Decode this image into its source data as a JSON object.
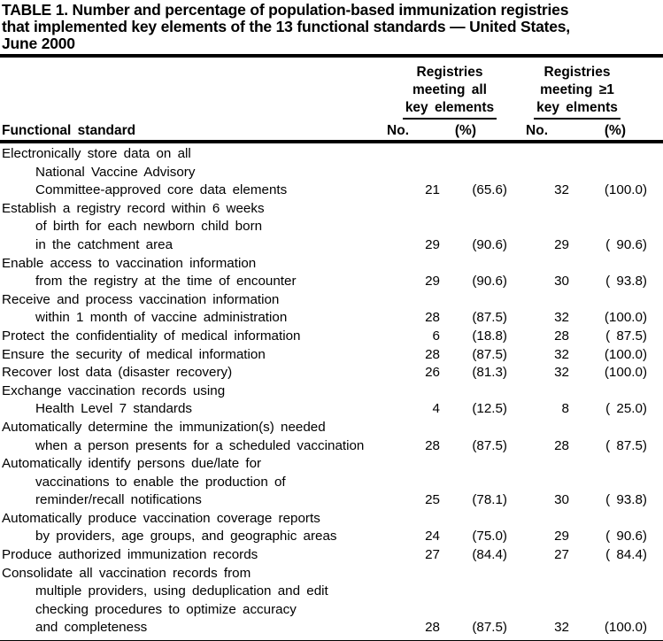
{
  "title_lines": [
    "TABLE 1. Number and percentage of population-based immunization registries",
    "that implemented key elements of the 13 functional standards — United States,",
    "June 2000"
  ],
  "table": {
    "group1": {
      "line1": "Registries",
      "line2": "meeting all",
      "line3": "key elements"
    },
    "group2": {
      "line1": "Registries",
      "line2": "meeting ≥1",
      "line3": "key elments"
    },
    "row_header": "Functional standard",
    "sub_headers": {
      "no1": "No.",
      "pct1": "(%)",
      "no2": "No.",
      "pct2": "(%)"
    },
    "rows": [
      {
        "lines": [
          "Electronically store data on all",
          "National Vaccine Advisory",
          "Committee-approved core data elements"
        ],
        "no1": "21",
        "pct1": "(65.6)",
        "no2": "32",
        "pct2": "(100.0)"
      },
      {
        "lines": [
          "Establish a registry record within 6 weeks",
          "of birth for each newborn child born",
          "in the catchment area"
        ],
        "no1": "29",
        "pct1": "(90.6)",
        "no2": "29",
        "pct2": "( 90.6)"
      },
      {
        "lines": [
          "Enable access to vaccination information",
          "from the registry at the time of encounter"
        ],
        "no1": "29",
        "pct1": "(90.6)",
        "no2": "30",
        "pct2": "( 93.8)"
      },
      {
        "lines": [
          "Receive and process vaccination information",
          "within 1 month of vaccine administration"
        ],
        "no1": "28",
        "pct1": "(87.5)",
        "no2": "32",
        "pct2": "(100.0)"
      },
      {
        "lines": [
          "Protect the confidentiality of medical information"
        ],
        "no1": "6",
        "pct1": "(18.8)",
        "no2": "28",
        "pct2": "( 87.5)"
      },
      {
        "lines": [
          "Ensure the security of medical information"
        ],
        "no1": "28",
        "pct1": "(87.5)",
        "no2": "32",
        "pct2": "(100.0)"
      },
      {
        "lines": [
          "Recover lost data (disaster recovery)"
        ],
        "no1": "26",
        "pct1": "(81.3)",
        "no2": "32",
        "pct2": "(100.0)"
      },
      {
        "lines": [
          "Exchange vaccination records using",
          "Health Level 7 standards"
        ],
        "no1": "4",
        "pct1": "(12.5)",
        "no2": "8",
        "pct2": "( 25.0)"
      },
      {
        "lines": [
          "Automatically determine the immunization(s) needed",
          "when a person presents for a scheduled vaccination"
        ],
        "no1": "28",
        "pct1": "(87.5)",
        "no2": "28",
        "pct2": "( 87.5)"
      },
      {
        "lines": [
          "Automatically identify persons due/late for",
          "vaccinations to enable the production of",
          "reminder/recall notifications"
        ],
        "no1": "25",
        "pct1": "(78.1)",
        "no2": "30",
        "pct2": "( 93.8)"
      },
      {
        "lines": [
          "Automatically produce vaccination coverage reports",
          "by providers, age groups, and geographic areas"
        ],
        "no1": "24",
        "pct1": "(75.0)",
        "no2": "29",
        "pct2": "( 90.6)"
      },
      {
        "lines": [
          "Produce authorized immunization records"
        ],
        "no1": "27",
        "pct1": "(84.4)",
        "no2": "27",
        "pct2": "( 84.4)"
      },
      {
        "lines": [
          "Consolidate all vaccination records from",
          "multiple providers, using deduplication and edit",
          "checking procedures to optimize accuracy",
          "and completeness"
        ],
        "no1": "28",
        "pct1": "(87.5)",
        "no2": "32",
        "pct2": "(100.0)"
      }
    ]
  }
}
